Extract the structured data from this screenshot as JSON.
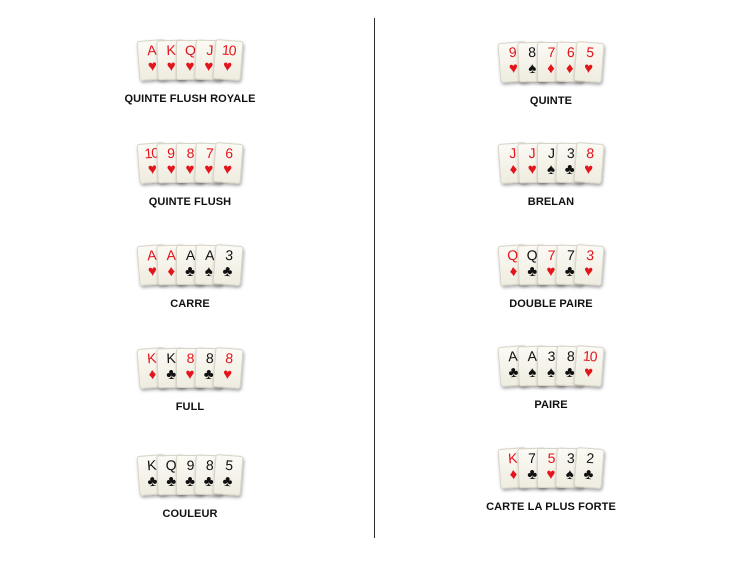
{
  "colors": {
    "red": "#e4141b",
    "black": "#111111",
    "divider": "#2a2a2a"
  },
  "left_column": [
    {
      "name": "QUINTE FLUSH ROYALE",
      "cards": [
        {
          "rank": "A",
          "suit": "♥",
          "color": "red"
        },
        {
          "rank": "K",
          "suit": "♥",
          "color": "red"
        },
        {
          "rank": "Q",
          "suit": "♥",
          "color": "red"
        },
        {
          "rank": "J",
          "suit": "♥",
          "color": "red"
        },
        {
          "rank": "10",
          "suit": "♥",
          "color": "red"
        }
      ]
    },
    {
      "name": "QUINTE FLUSH",
      "cards": [
        {
          "rank": "10",
          "suit": "♥",
          "color": "red"
        },
        {
          "rank": "9",
          "suit": "♥",
          "color": "red"
        },
        {
          "rank": "8",
          "suit": "♥",
          "color": "red"
        },
        {
          "rank": "7",
          "suit": "♥",
          "color": "red"
        },
        {
          "rank": "6",
          "suit": "♥",
          "color": "red"
        }
      ]
    },
    {
      "name": "CARRE",
      "cards": [
        {
          "rank": "A",
          "suit": "♥",
          "color": "red"
        },
        {
          "rank": "A",
          "suit": "♦",
          "color": "red"
        },
        {
          "rank": "A",
          "suit": "♣",
          "color": "black"
        },
        {
          "rank": "A",
          "suit": "♠",
          "color": "black"
        },
        {
          "rank": "3",
          "suit": "♣",
          "color": "black"
        }
      ]
    },
    {
      "name": "FULL",
      "cards": [
        {
          "rank": "K",
          "suit": "♦",
          "color": "red"
        },
        {
          "rank": "K",
          "suit": "♣",
          "color": "black"
        },
        {
          "rank": "8",
          "suit": "♥",
          "color": "red"
        },
        {
          "rank": "8",
          "suit": "♣",
          "color": "black"
        },
        {
          "rank": "8",
          "suit": "♥",
          "color": "red"
        }
      ]
    },
    {
      "name": "COULEUR",
      "cards": [
        {
          "rank": "K",
          "suit": "♣",
          "color": "black"
        },
        {
          "rank": "Q",
          "suit": "♣",
          "color": "black"
        },
        {
          "rank": "9",
          "suit": "♣",
          "color": "black"
        },
        {
          "rank": "8",
          "suit": "♣",
          "color": "black"
        },
        {
          "rank": "5",
          "suit": "♣",
          "color": "black"
        }
      ]
    }
  ],
  "right_column": [
    {
      "name": "QUINTE",
      "cards": [
        {
          "rank": "9",
          "suit": "♥",
          "color": "red"
        },
        {
          "rank": "8",
          "suit": "♠",
          "color": "black"
        },
        {
          "rank": "7",
          "suit": "♦",
          "color": "red"
        },
        {
          "rank": "6",
          "suit": "♦",
          "color": "red"
        },
        {
          "rank": "5",
          "suit": "♥",
          "color": "red"
        }
      ]
    },
    {
      "name": "BRELAN",
      "cards": [
        {
          "rank": "J",
          "suit": "♦",
          "color": "red"
        },
        {
          "rank": "J",
          "suit": "♥",
          "color": "red"
        },
        {
          "rank": "J",
          "suit": "♠",
          "color": "black"
        },
        {
          "rank": "3",
          "suit": "♣",
          "color": "black"
        },
        {
          "rank": "8",
          "suit": "♥",
          "color": "red"
        }
      ]
    },
    {
      "name": "DOUBLE PAIRE",
      "cards": [
        {
          "rank": "Q",
          "suit": "♦",
          "color": "red"
        },
        {
          "rank": "Q",
          "suit": "♣",
          "color": "black"
        },
        {
          "rank": "7",
          "suit": "♥",
          "color": "red"
        },
        {
          "rank": "7",
          "suit": "♣",
          "color": "black"
        },
        {
          "rank": "3",
          "suit": "♥",
          "color": "red"
        }
      ]
    },
    {
      "name": "PAIRE",
      "cards": [
        {
          "rank": "A",
          "suit": "♣",
          "color": "black"
        },
        {
          "rank": "A",
          "suit": "♠",
          "color": "black"
        },
        {
          "rank": "3",
          "suit": "♠",
          "color": "black"
        },
        {
          "rank": "8",
          "suit": "♣",
          "color": "black"
        },
        {
          "rank": "10",
          "suit": "♥",
          "color": "red"
        }
      ]
    },
    {
      "name": "CARTE LA PLUS FORTE",
      "cards": [
        {
          "rank": "K",
          "suit": "♦",
          "color": "red"
        },
        {
          "rank": "7",
          "suit": "♣",
          "color": "black"
        },
        {
          "rank": "5",
          "suit": "♥",
          "color": "red"
        },
        {
          "rank": "3",
          "suit": "♠",
          "color": "black"
        },
        {
          "rank": "2",
          "suit": "♣",
          "color": "black"
        }
      ]
    }
  ]
}
